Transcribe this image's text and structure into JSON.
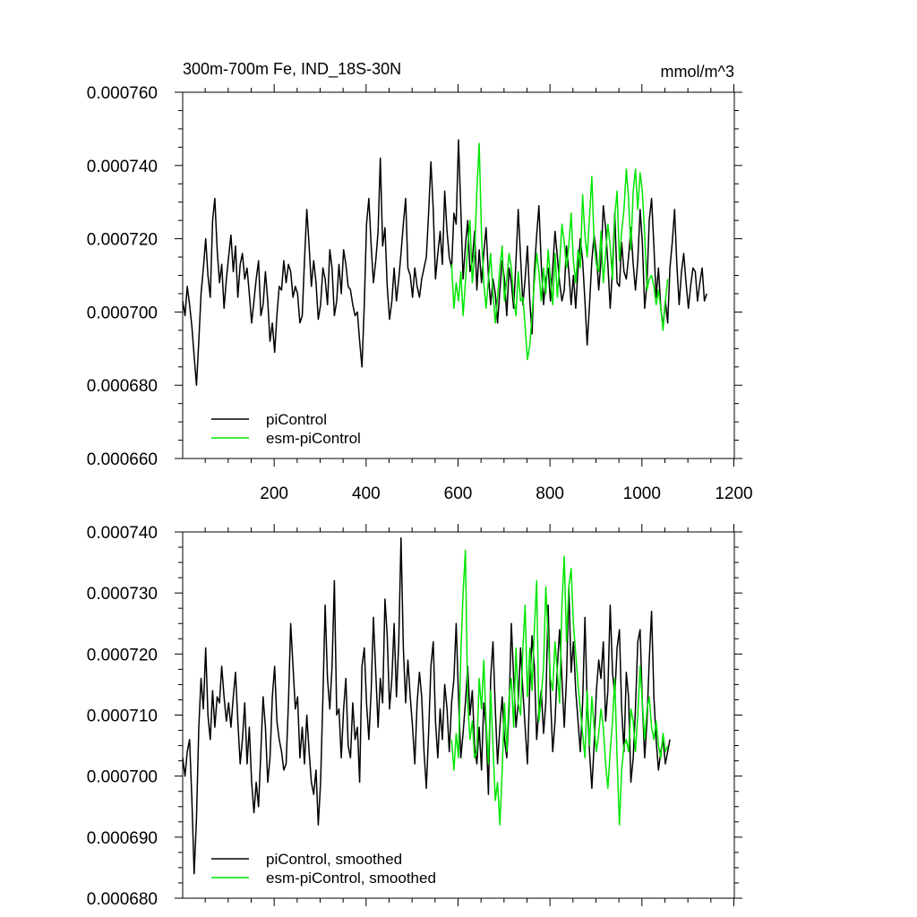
{
  "title_left": "300m-700m Fe, IND_18S-30N",
  "title_right": "mmol/m^3",
  "colors": {
    "piControl": "#000000",
    "esm_piControl": "#00e600"
  },
  "chart_data": [
    {
      "type": "line",
      "panel": "top",
      "title": "300m-700m Fe, IND_18S-30N",
      "units": "mmol/m^3",
      "xlim": [
        1,
        1201
      ],
      "ylim": [
        0.00066,
        0.00076
      ],
      "xticks": [
        200,
        400,
        600,
        800,
        1000,
        1200
      ],
      "xtick_labels": [
        "200",
        "400",
        "600",
        "800",
        "1000",
        "1200"
      ],
      "yticks": [
        0.00066,
        0.00068,
        0.0007,
        0.00072,
        0.00074,
        0.00076
      ],
      "ytick_labels": [
        "0.000660",
        "0.000680",
        "0.000700",
        "0.000720",
        "0.000740",
        "0.000760"
      ],
      "legend": [
        "piControl",
        "esm-piControl"
      ],
      "legend_position": "bottom-left",
      "series": [
        {
          "name": "piControl",
          "color": "#000000",
          "x_start": 1,
          "x_step": 5,
          "values": [
            0.000703,
            0.000699,
            0.000707,
            0.000702,
            0.000696,
            0.000688,
            0.00068,
            0.000692,
            0.000705,
            0.000712,
            0.00072,
            0.00071,
            0.000704,
            0.000725,
            0.000731,
            0.000717,
            0.000708,
            0.000713,
            0.000701,
            0.000709,
            0.000715,
            0.000721,
            0.000711,
            0.000718,
            0.000704,
            0.000713,
            0.000716,
            0.000709,
            0.000712,
            0.000705,
            0.000697,
            0.000703,
            0.000709,
            0.000714,
            0.000699,
            0.000702,
            0.000711,
            0.000703,
            0.000692,
            0.000697,
            0.000689,
            0.000699,
            0.000707,
            0.000706,
            0.000714,
            0.000708,
            0.000713,
            0.000711,
            0.000704,
            0.000707,
            0.000705,
            0.000697,
            0.000699,
            0.000714,
            0.000728,
            0.000718,
            0.000707,
            0.000714,
            0.000708,
            0.000698,
            0.000702,
            0.000712,
            0.000709,
            0.000702,
            0.000717,
            0.000712,
            0.000699,
            0.000703,
            0.000713,
            0.000705,
            0.000717,
            0.000713,
            0.000707,
            0.000706,
            0.000702,
            0.000699,
            0.0007,
            0.000692,
            0.000685,
            0.000702,
            0.000724,
            0.000731,
            0.000718,
            0.000708,
            0.000714,
            0.000722,
            0.000742,
            0.000718,
            0.000723,
            0.000707,
            0.000698,
            0.000703,
            0.000712,
            0.000703,
            0.000709,
            0.000716,
            0.000724,
            0.000731,
            0.000712,
            0.00071,
            0.000704,
            0.000712,
            0.000707,
            0.000704,
            0.000709,
            0.000712,
            0.000715,
            0.000727,
            0.000741,
            0.000728,
            0.000709,
            0.000716,
            0.000722,
            0.000713,
            0.000733,
            0.000722,
            0.000715,
            0.000712,
            0.000727,
            0.000724,
            0.000747,
            0.000728,
            0.000709,
            0.000718,
            0.000725,
            0.000711,
            0.000714,
            0.000722,
            0.000706,
            0.000717,
            0.000708,
            0.000716,
            0.000723,
            0.00071,
            0.000702,
            0.000709,
            0.000705,
            0.000697,
            0.000706,
            0.000714,
            0.000709,
            0.000699,
            0.000712,
            0.000708,
            0.000701,
            0.000714,
            0.000728,
            0.000715,
            0.000702,
            0.000709,
            0.000718,
            0.000703,
            0.000694,
            0.000711,
            0.000721,
            0.000729,
            0.000713,
            0.000702,
            0.000709,
            0.000712,
            0.000703,
            0.000712,
            0.000722,
            0.000715,
            0.000708,
            0.000703,
            0.000706,
            0.000718,
            0.000711,
            0.000702,
            0.00071,
            0.000701,
            0.000712,
            0.00072,
            0.000714,
            0.000703,
            0.000691,
            0.000702,
            0.000714,
            0.000721,
            0.000716,
            0.000706,
            0.000714,
            0.000729,
            0.000723,
            0.000713,
            0.000701,
            0.000712,
            0.000727,
            0.000708,
            0.000707,
            0.000719,
            0.000711,
            0.000709,
            0.000715,
            0.000723,
            0.000713,
            0.000706,
            0.000714,
            0.000728,
            0.000719,
            0.000701,
            0.000708,
            0.000725,
            0.000731,
            0.000718,
            0.000704,
            0.000712,
            0.000701,
            0.000696,
            0.000703,
            0.000697,
            0.000712,
            0.000719,
            0.000728,
            0.000713,
            0.000702,
            0.000711,
            0.000716,
            0.000708,
            0.000701,
            0.000707,
            0.000712,
            0.000711,
            0.000703,
            0.000708,
            0.000712,
            0.000703,
            0.000705
          ]
        },
        {
          "name": "esm-piControl",
          "color": "#00e600",
          "x_start": 586,
          "x_step": 5,
          "values": [
            0.000713,
            0.000701,
            0.000708,
            0.000703,
            0.000711,
            0.000699,
            0.000708,
            0.000718,
            0.000725,
            0.000708,
            0.000716,
            0.000733,
            0.000746,
            0.000721,
            0.000708,
            0.000701,
            0.000709,
            0.000716,
            0.000705,
            0.000697,
            0.000704,
            0.000712,
            0.000718,
            0.000703,
            0.000709,
            0.000716,
            0.000712,
            0.000704,
            0.000699,
            0.000711,
            0.000703,
            0.000704,
            0.000696,
            0.000687,
            0.000691,
            0.000699,
            0.000708,
            0.000716,
            0.000711,
            0.000703,
            0.000712,
            0.000705,
            0.000717,
            0.000709,
            0.000702,
            0.000716,
            0.000704,
            0.000713,
            0.000724,
            0.000719,
            0.000712,
            0.000718,
            0.000727,
            0.000714,
            0.000708,
            0.000717,
            0.000712,
            0.000732,
            0.000721,
            0.000715,
            0.000726,
            0.000737,
            0.000719,
            0.000713,
            0.000711,
            0.000722,
            0.000708,
            0.000716,
            0.000724,
            0.000718,
            0.000709,
            0.000726,
            0.000733,
            0.000714,
            0.000722,
            0.000728,
            0.000739,
            0.000731,
            0.000717,
            0.000733,
            0.000739,
            0.000728,
            0.000738,
            0.000733,
            0.000721,
            0.000706,
            0.000709,
            0.00071,
            0.000707,
            0.000702,
            0.000706,
            0.000701,
            0.000695,
            0.000703,
            0.000709
          ]
        }
      ]
    },
    {
      "type": "line",
      "panel": "bottom",
      "xlim": [
        1,
        1201
      ],
      "ylim": [
        0.00068,
        0.00074
      ],
      "xticks": [
        200,
        400,
        600,
        800,
        1000,
        1200
      ],
      "yticks": [
        0.00068,
        0.00069,
        0.0007,
        0.00071,
        0.00072,
        0.00073,
        0.00074
      ],
      "ytick_labels": [
        "0.000680",
        "0.000690",
        "0.000700",
        "0.000710",
        "0.000720",
        "0.000730",
        "0.000740"
      ],
      "legend": [
        "piControl, smoothed",
        "esm-piControl, smoothed"
      ],
      "legend_position": "bottom-left",
      "series": [
        {
          "name": "piControl, smoothed",
          "color": "#000000",
          "x_start": 1,
          "x_step": 5,
          "values": [
            0.000703,
            0.0007,
            0.000704,
            0.000706,
            0.000696,
            0.000684,
            0.000693,
            0.000708,
            0.000716,
            0.000711,
            0.000721,
            0.00071,
            0.000706,
            0.000714,
            0.000708,
            0.000713,
            0.000712,
            0.000718,
            0.000713,
            0.000709,
            0.000712,
            0.000708,
            0.000713,
            0.000717,
            0.000709,
            0.000702,
            0.000706,
            0.000712,
            0.000702,
            0.000708,
            0.000699,
            0.000694,
            0.000699,
            0.000695,
            0.000704,
            0.000713,
            0.000708,
            0.000699,
            0.000703,
            0.000713,
            0.000718,
            0.000709,
            0.000706,
            0.000704,
            0.000701,
            0.000702,
            0.000712,
            0.000725,
            0.000718,
            0.000711,
            0.000713,
            0.000703,
            0.000708,
            0.000702,
            0.00071,
            0.000704,
            0.000699,
            0.000697,
            0.000701,
            0.000692,
            0.000699,
            0.000713,
            0.000728,
            0.000716,
            0.000711,
            0.000718,
            0.000732,
            0.00071,
            0.000711,
            0.000703,
            0.000711,
            0.000716,
            0.000705,
            0.000703,
            0.000712,
            0.000706,
            0.000708,
            0.000699,
            0.000718,
            0.000721,
            0.000712,
            0.000706,
            0.000714,
            0.000726,
            0.000717,
            0.000708,
            0.000716,
            0.000712,
            0.000729,
            0.000723,
            0.000711,
            0.000716,
            0.000725,
            0.000713,
            0.000722,
            0.000739,
            0.000721,
            0.000712,
            0.000719,
            0.000713,
            0.000708,
            0.000702,
            0.000712,
            0.000717,
            0.000713,
            0.000704,
            0.000698,
            0.000707,
            0.000718,
            0.000722,
            0.000709,
            0.000703,
            0.000711,
            0.000706,
            0.000715,
            0.000711,
            0.000704,
            0.000712,
            0.000716,
            0.000725,
            0.000713,
            0.000703,
            0.000707,
            0.000712,
            0.000718,
            0.00071,
            0.000714,
            0.000705,
            0.000702,
            0.000708,
            0.000701,
            0.000712,
            0.000708,
            0.000697,
            0.000716,
            0.000722,
            0.000711,
            0.000702,
            0.000708,
            0.000713,
            0.000706,
            0.000703,
            0.000711,
            0.000725,
            0.000716,
            0.000708,
            0.000712,
            0.000721,
            0.000714,
            0.000708,
            0.000702,
            0.000715,
            0.000723,
            0.000718,
            0.000706,
            0.000711,
            0.000714,
            0.000707,
            0.000712,
            0.000728,
            0.000713,
            0.000704,
            0.000709,
            0.000718,
            0.000724,
            0.000716,
            0.000708,
            0.000716,
            0.000731,
            0.000717,
            0.000722,
            0.000714,
            0.000709,
            0.000704,
            0.000712,
            0.000726,
            0.000712,
            0.000704,
            0.000698,
            0.000705,
            0.000714,
            0.000719,
            0.000716,
            0.000722,
            0.000709,
            0.000714,
            0.000728,
            0.000717,
            0.000713,
            0.000721,
            0.000724,
            0.000711,
            0.000704,
            0.000717,
            0.000713,
            0.000699,
            0.000703,
            0.000711,
            0.000722,
            0.000724,
            0.000712,
            0.000703,
            0.000709,
            0.000719,
            0.000727,
            0.000713,
            0.000706,
            0.000701,
            0.000704,
            0.000706,
            0.000702,
            0.000704,
            0.000706
          ]
        },
        {
          "name": "esm-piControl, smoothed",
          "color": "#00e600",
          "x_start": 586,
          "x_step": 5,
          "values": [
            0.000706,
            0.000701,
            0.000707,
            0.000703,
            0.00072,
            0.00073,
            0.000737,
            0.000712,
            0.000706,
            0.000709,
            0.000703,
            0.000704,
            0.000716,
            0.000711,
            0.000719,
            0.000709,
            0.000702,
            0.000714,
            0.000705,
            0.000696,
            0.000699,
            0.000692,
            0.000701,
            0.000712,
            0.000704,
            0.000713,
            0.000716,
            0.000708,
            0.000721,
            0.000712,
            0.00071,
            0.000721,
            0.000728,
            0.000713,
            0.000721,
            0.000714,
            0.000724,
            0.000732,
            0.000709,
            0.000713,
            0.000718,
            0.000731,
            0.000723,
            0.000716,
            0.000714,
            0.000722,
            0.000717,
            0.000712,
            0.000728,
            0.000736,
            0.000722,
            0.000731,
            0.000734,
            0.000725,
            0.00072,
            0.000715,
            0.000711,
            0.000707,
            0.000703,
            0.000714,
            0.000705,
            0.000713,
            0.000708,
            0.000704,
            0.000707,
            0.000711,
            0.000708,
            0.000702,
            0.000698,
            0.000704,
            0.000709,
            0.000716,
            0.000703,
            0.000692,
            0.000701,
            0.000705,
            0.000706,
            0.000704,
            0.000711,
            0.000709,
            0.000704,
            0.00071,
            0.000718,
            0.000712,
            0.000706,
            0.000711,
            0.000713,
            0.000708,
            0.000706,
            0.000709,
            0.000705,
            0.000703,
            0.000707,
            0.000704,
            0.000705
          ]
        }
      ]
    }
  ]
}
